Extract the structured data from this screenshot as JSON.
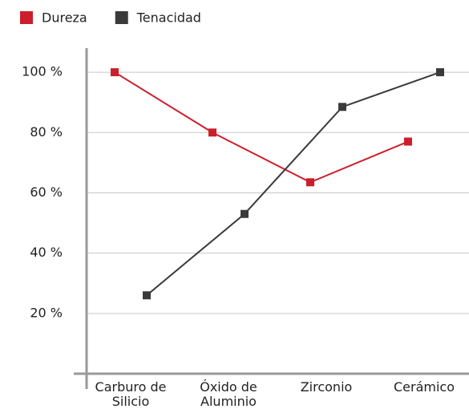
{
  "chart_data": {
    "type": "line",
    "categories": [
      "Carburo de Silicio",
      "Óxido de Aluminio",
      "Zirconio",
      "Cerámico"
    ],
    "series": [
      {
        "name": "Dureza",
        "color": "#cc1f2b",
        "values": [
          100,
          80,
          63.5,
          77
        ]
      },
      {
        "name": "Tenacidad",
        "color": "#3a3a3a",
        "values": [
          26,
          53,
          88.5,
          100
        ]
      }
    ],
    "ylim": [
      0,
      108
    ],
    "yticks": [
      {
        "value": 20,
        "label": "20 %"
      },
      {
        "value": 40,
        "label": "40 %"
      },
      {
        "value": 60,
        "label": "60 %"
      },
      {
        "value": 80,
        "label": "80 %"
      },
      {
        "value": 100,
        "label": "100 %"
      }
    ],
    "grid": true,
    "legend": "top-left"
  }
}
